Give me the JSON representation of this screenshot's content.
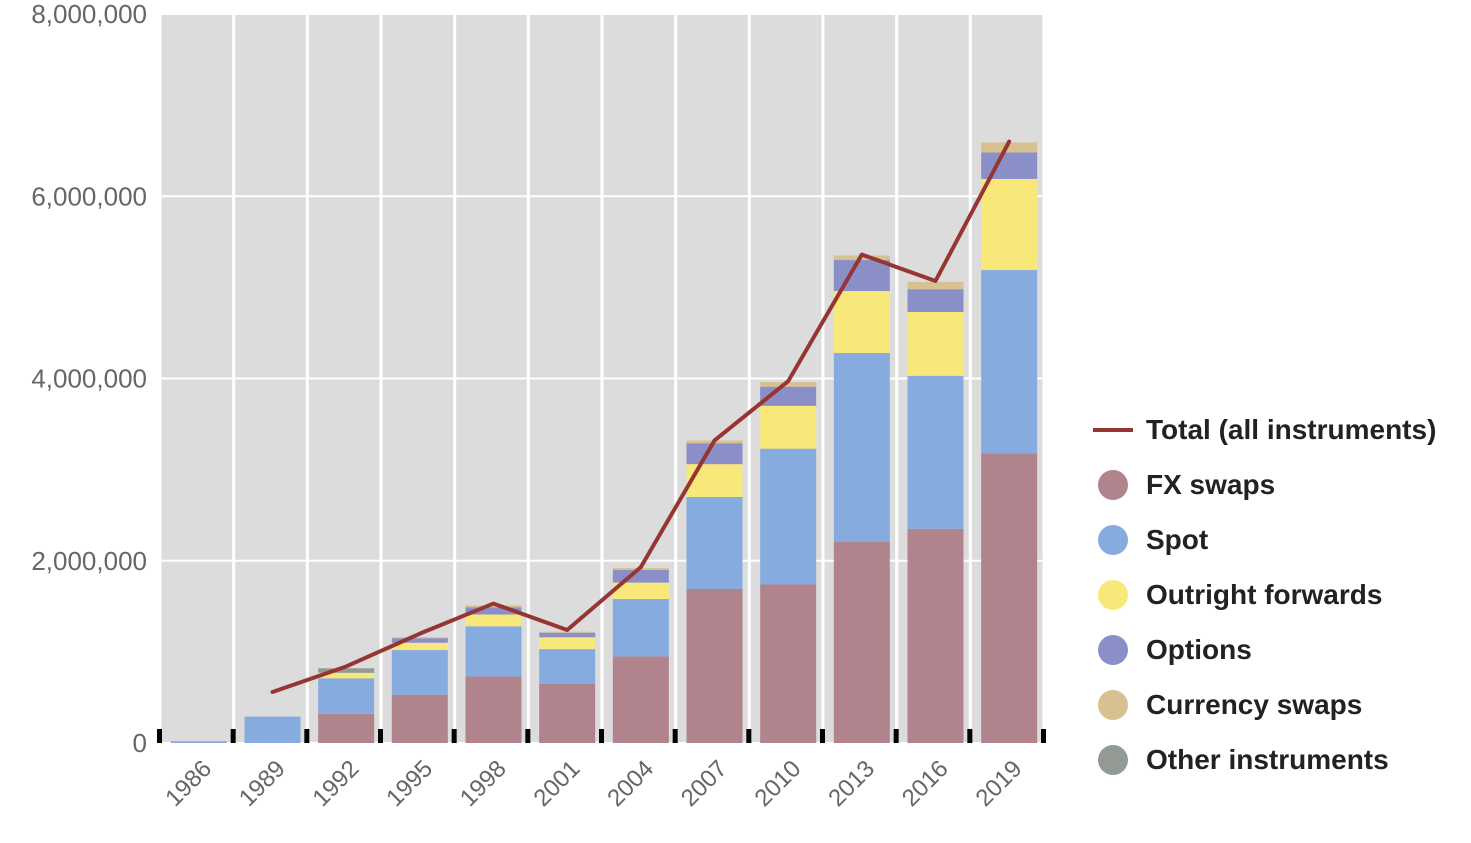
{
  "chart_data": {
    "type": "bar",
    "stacked": true,
    "categories": [
      "1986",
      "1989",
      "1992",
      "1995",
      "1998",
      "2001",
      "2004",
      "2007",
      "2010",
      "2013",
      "2016",
      "2019"
    ],
    "series": [
      {
        "name": "FX swaps",
        "color": "#b0838d",
        "values": [
          0,
          0,
          320000,
          530000,
          730000,
          650000,
          950000,
          1690000,
          1740000,
          2210000,
          2350000,
          3180000
        ]
      },
      {
        "name": "Spot",
        "color": "#86abdf",
        "values": [
          20000,
          290000,
          390000,
          490000,
          550000,
          380000,
          630000,
          1010000,
          1490000,
          2070000,
          1680000,
          2010000
        ]
      },
      {
        "name": "Outright forwards",
        "color": "#f8e87a",
        "values": [
          0,
          0,
          60000,
          80000,
          130000,
          130000,
          180000,
          360000,
          470000,
          680000,
          700000,
          1000000
        ]
      },
      {
        "name": "Options",
        "color": "#8a8fc8",
        "values": [
          0,
          0,
          0,
          50000,
          80000,
          50000,
          140000,
          230000,
          210000,
          340000,
          250000,
          290000
        ]
      },
      {
        "name": "Currency swaps",
        "color": "#d8c190",
        "values": [
          0,
          0,
          0,
          5000,
          20000,
          10000,
          20000,
          30000,
          50000,
          50000,
          80000,
          110000
        ]
      },
      {
        "name": "Other instruments",
        "color": "#939a94",
        "values": [
          0,
          0,
          50000,
          0,
          0,
          0,
          0,
          0,
          0,
          0,
          0,
          0
        ]
      }
    ],
    "line": {
      "name": "Total (all instruments)",
      "color": "#963632",
      "x": [
        "1989",
        "1992",
        "1995",
        "1998",
        "2001",
        "2004",
        "2007",
        "2010",
        "2013",
        "2016",
        "2019"
      ],
      "values": [
        560000,
        840000,
        1200000,
        1530000,
        1240000,
        1930000,
        3320000,
        3970000,
        5360000,
        5070000,
        6600000
      ]
    },
    "ylim": [
      0,
      8000000
    ],
    "yticks": [
      "0",
      "2,000,000",
      "4,000,000",
      "6,000,000",
      "8,000,000"
    ],
    "ytick_values": [
      0,
      2000000,
      4000000,
      6000000,
      8000000
    ],
    "grid": true,
    "legend_position": "right",
    "title": "",
    "xlabel": "",
    "ylabel": ""
  }
}
